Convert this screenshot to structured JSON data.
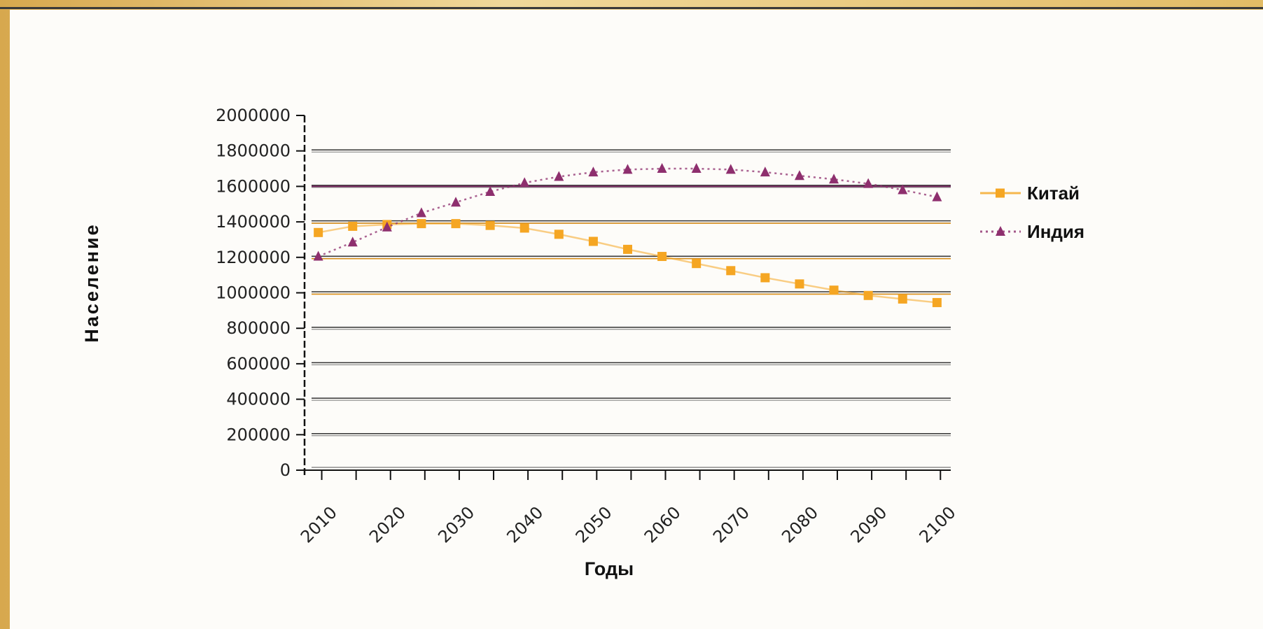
{
  "chart_data": {
    "type": "line",
    "title": "",
    "xlabel": "Годы",
    "ylabel": "Население",
    "ylim": [
      0,
      2000000
    ],
    "yticks": [
      0,
      200000,
      400000,
      600000,
      800000,
      1000000,
      1200000,
      1400000,
      1600000,
      1800000,
      2000000
    ],
    "ytick_labels": [
      "0",
      "200000",
      "400000",
      "600000",
      "800000",
      "1000000",
      "1200000",
      "1400000",
      "1600000",
      "1800000",
      "2000000"
    ],
    "xticks": [
      2010,
      2020,
      2030,
      2040,
      2050,
      2060,
      2070,
      2080,
      2090,
      2100
    ],
    "xtick_labels": [
      "2010",
      "2020",
      "2030",
      "2040",
      "2050",
      "2060",
      "2070",
      "2080",
      "2090",
      "2100"
    ],
    "xlim": [
      2008,
      2102
    ],
    "grid": true,
    "legend_position": "right",
    "series": [
      {
        "name": "Китай",
        "color": "#f5a623",
        "marker": "square",
        "x": [
          2010,
          2015,
          2020,
          2025,
          2030,
          2035,
          2040,
          2045,
          2050,
          2055,
          2060,
          2065,
          2070,
          2075,
          2080,
          2085,
          2090,
          2095,
          2100
        ],
        "values": [
          1340000,
          1375000,
          1385000,
          1390000,
          1390000,
          1380000,
          1365000,
          1330000,
          1290000,
          1245000,
          1205000,
          1165000,
          1125000,
          1085000,
          1050000,
          1015000,
          985000,
          965000,
          945000
        ]
      },
      {
        "name": "Индия",
        "color": "#8e2f6e",
        "marker": "triangle",
        "x": [
          2010,
          2015,
          2020,
          2025,
          2030,
          2035,
          2040,
          2045,
          2050,
          2055,
          2060,
          2065,
          2070,
          2075,
          2080,
          2085,
          2090,
          2095,
          2100
        ],
        "values": [
          1205000,
          1285000,
          1370000,
          1450000,
          1510000,
          1570000,
          1620000,
          1655000,
          1680000,
          1695000,
          1700000,
          1700000,
          1695000,
          1680000,
          1660000,
          1640000,
          1615000,
          1580000,
          1540000
        ]
      }
    ]
  }
}
